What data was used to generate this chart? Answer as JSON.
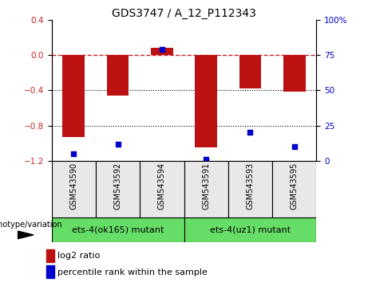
{
  "title": "GDS3747 / A_12_P112343",
  "categories": [
    "GSM543590",
    "GSM543592",
    "GSM543594",
    "GSM543591",
    "GSM543593",
    "GSM543595"
  ],
  "log2_ratio": [
    -0.93,
    -0.46,
    0.08,
    -1.05,
    -0.38,
    -0.42
  ],
  "percentile_rank": [
    5,
    12,
    79,
    1,
    20,
    10
  ],
  "ylim_left": [
    -1.2,
    0.4
  ],
  "ylim_right": [
    0,
    100
  ],
  "bar_color": "#bb1111",
  "dot_color": "#0000cc",
  "zero_line_color": "#cc2222",
  "bg_color": "#e8e8e8",
  "group1_label": "ets-4(ok165) mutant",
  "group2_label": "ets-4(uz1) mutant",
  "group_color": "#66dd66",
  "xlabel_genotype": "genotype/variation",
  "legend_log2": "log2 ratio",
  "legend_pct": "percentile rank within the sample",
  "right_yticks": [
    0,
    25,
    50,
    75,
    100
  ],
  "left_yticks": [
    -1.2,
    -0.8,
    -0.4,
    0.0,
    0.4
  ],
  "bar_width": 0.5
}
